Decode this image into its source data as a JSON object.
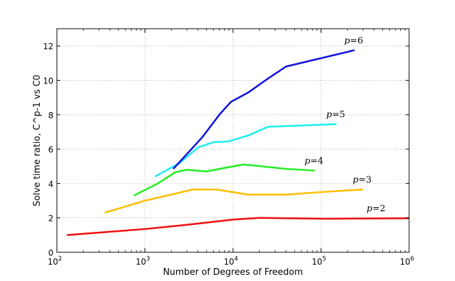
{
  "chart_data": {
    "type": "line",
    "title": "",
    "xlabel": "Number of Degrees of Freedom",
    "ylabel": "Solve time ratio, C^p-1 vs C0",
    "xscale": "log",
    "xlim": [
      100,
      1000000
    ],
    "ylim": [
      0,
      13
    ],
    "grid": true,
    "grid_style": "dotted",
    "xticks": [
      {
        "value": 100,
        "base": "10",
        "exp": "2"
      },
      {
        "value": 1000,
        "base": "10",
        "exp": "3"
      },
      {
        "value": 10000,
        "base": "10",
        "exp": "4"
      },
      {
        "value": 100000,
        "base": "10",
        "exp": "5"
      },
      {
        "value": 1000000,
        "base": "10",
        "exp": "6"
      }
    ],
    "yticks": [
      {
        "value": 0,
        "label": "0"
      },
      {
        "value": 2,
        "label": "2"
      },
      {
        "value": 4,
        "label": "4"
      },
      {
        "value": 6,
        "label": "6"
      },
      {
        "value": 8,
        "label": "8"
      },
      {
        "value": 10,
        "label": "10"
      },
      {
        "value": 12,
        "label": "12"
      }
    ],
    "series": [
      {
        "label": "p=2",
        "color": "#ee1111",
        "x": [
          130,
          1000,
          3000,
          10000,
          20000,
          40000,
          120000,
          500000,
          1000000
        ],
        "y": [
          1.0,
          1.35,
          1.6,
          1.9,
          2.0,
          1.98,
          1.95,
          1.97,
          1.98
        ]
      },
      {
        "label": "p=3",
        "color": "#ffbf00",
        "x": [
          350,
          1000,
          3500,
          6500,
          15000,
          40000,
          100000,
          300000
        ],
        "y": [
          2.3,
          3.0,
          3.65,
          3.65,
          3.35,
          3.35,
          3.5,
          3.65
        ]
      },
      {
        "label": "p=4",
        "color": "#22ee22",
        "x": [
          750,
          1400,
          2200,
          3000,
          5000,
          8000,
          13000,
          17000,
          40000,
          85000
        ],
        "y": [
          3.3,
          4.0,
          4.65,
          4.8,
          4.7,
          4.9,
          5.1,
          5.05,
          4.85,
          4.75
        ]
      },
      {
        "label": "p=5",
        "color": "#22eeee",
        "x": [
          1300,
          2500,
          4000,
          6000,
          9000,
          15000,
          25000,
          150000
        ],
        "y": [
          4.4,
          5.2,
          6.1,
          6.4,
          6.45,
          6.8,
          7.3,
          7.45
        ]
      },
      {
        "label": "p=6",
        "color": "#1111dd",
        "x": [
          2100,
          4500,
          7000,
          9500,
          15000,
          25000,
          40000,
          240000
        ],
        "y": [
          4.85,
          6.7,
          8.0,
          8.75,
          9.3,
          10.1,
          10.8,
          11.75
        ]
      }
    ]
  }
}
